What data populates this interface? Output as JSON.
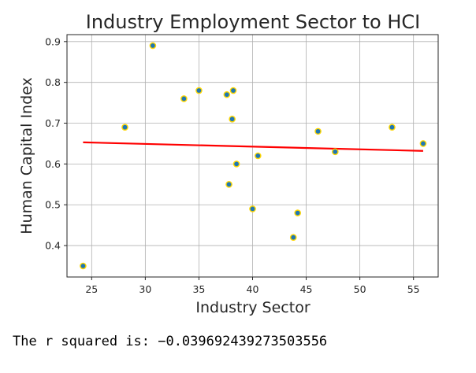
{
  "chart_data": {
    "type": "scatter",
    "title": "Industry Employment Sector to HCI",
    "xlabel": "Industry Sector",
    "ylabel": "Human Capital Index",
    "xlim": [
      22.7,
      57.3
    ],
    "ylim": [
      0.323,
      0.917
    ],
    "xticks": [
      25,
      30,
      35,
      40,
      45,
      50,
      55
    ],
    "yticks": [
      0.4,
      0.5,
      0.6,
      0.7,
      0.8,
      0.9
    ],
    "grid": true,
    "points": [
      {
        "x": 24.2,
        "y": 0.35
      },
      {
        "x": 28.1,
        "y": 0.69
      },
      {
        "x": 30.7,
        "y": 0.89
      },
      {
        "x": 33.6,
        "y": 0.76
      },
      {
        "x": 35.0,
        "y": 0.78
      },
      {
        "x": 37.6,
        "y": 0.77
      },
      {
        "x": 37.8,
        "y": 0.55
      },
      {
        "x": 38.1,
        "y": 0.71
      },
      {
        "x": 38.2,
        "y": 0.78
      },
      {
        "x": 38.5,
        "y": 0.6
      },
      {
        "x": 40.0,
        "y": 0.49
      },
      {
        "x": 40.5,
        "y": 0.62
      },
      {
        "x": 43.8,
        "y": 0.42
      },
      {
        "x": 44.2,
        "y": 0.48
      },
      {
        "x": 46.1,
        "y": 0.68
      },
      {
        "x": 47.7,
        "y": 0.63
      },
      {
        "x": 53.0,
        "y": 0.69
      },
      {
        "x": 55.9,
        "y": 0.65
      }
    ],
    "regression_line": {
      "x": [
        24.2,
        55.9
      ],
      "y": [
        0.653,
        0.632
      ]
    },
    "colors": {
      "marker_fill": "#1f77b4",
      "marker_edge": "#ffd700",
      "regression": "#ff0000",
      "grid": "#b0b0b0",
      "frame": "#262626"
    }
  },
  "output": {
    "text": "The r squared is: −0.039692439273503556"
  }
}
